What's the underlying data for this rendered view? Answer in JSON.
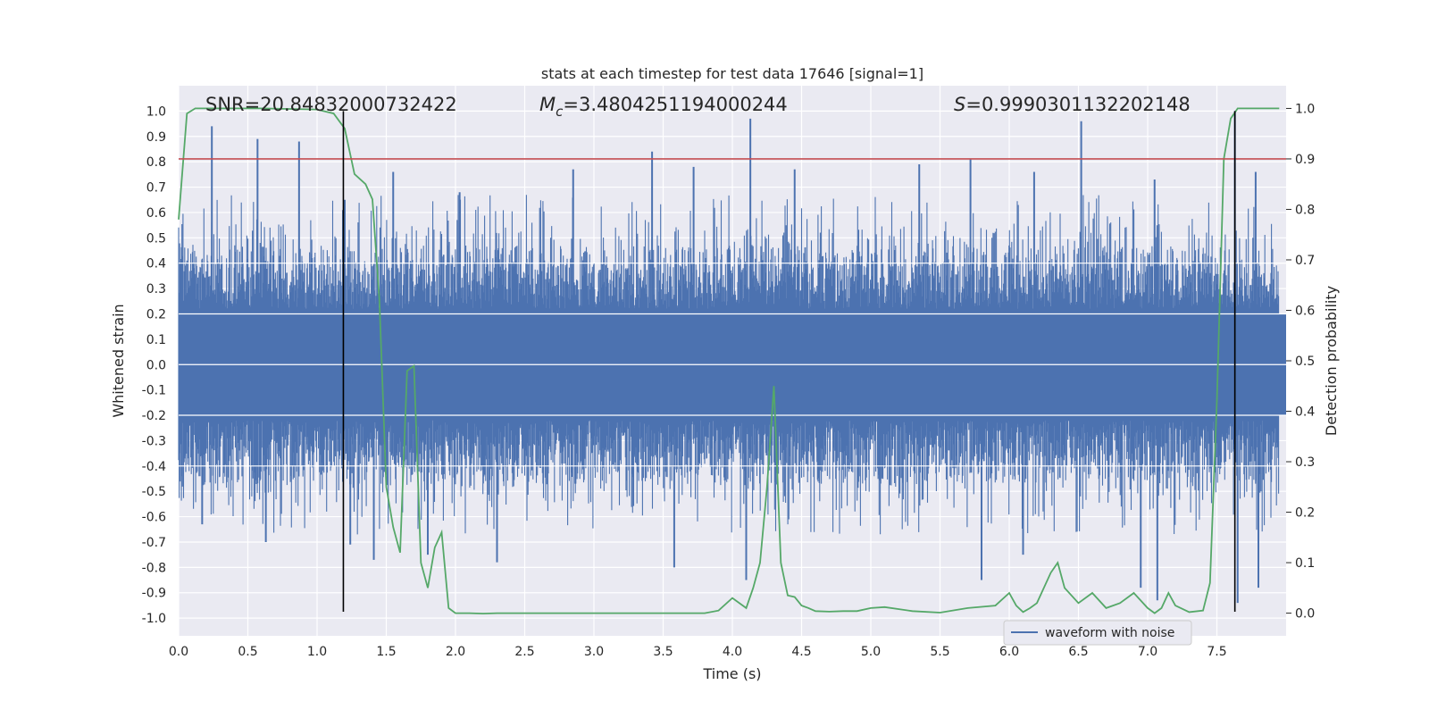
{
  "chart_data": {
    "type": "line",
    "title": "stats at each timestep for test data 17646 [signal=1]",
    "xlabel": "Time (s)",
    "ylabel": "Whitened strain",
    "y2label": "Detection probability",
    "xlim": [
      0.0,
      8.0
    ],
    "ylim": [
      -1.07,
      1.1
    ],
    "y2lim": [
      -0.045,
      1.045
    ],
    "x_ticks": [
      "0.0",
      "0.5",
      "1.0",
      "1.5",
      "2.0",
      "2.5",
      "3.0",
      "3.5",
      "4.0",
      "4.5",
      "5.0",
      "5.5",
      "6.0",
      "6.5",
      "7.0",
      "7.5"
    ],
    "y_ticks": [
      "1.0",
      "0.9",
      "0.8",
      "0.7",
      "0.6",
      "0.5",
      "0.4",
      "0.3",
      "0.2",
      "0.1",
      "0.0",
      "-0.1",
      "-0.2",
      "-0.3",
      "-0.4",
      "-0.5",
      "-0.6",
      "-0.7",
      "-0.8",
      "-0.9",
      "-1.0"
    ],
    "y2_ticks": [
      "1.0",
      "0.9",
      "0.8",
      "0.7",
      "0.6",
      "0.5",
      "0.4",
      "0.3",
      "0.2",
      "0.1",
      "0.0"
    ],
    "grid": true,
    "legend_position": "lower-right",
    "annotations": {
      "snr": "SNR=20.84832000732422",
      "mc_symbol": "M",
      "mc_sub": "c",
      "mc_value": "=3.4804251194000244",
      "s_symbol": "S",
      "s_value": "=0.9990301132202148"
    },
    "threshold": {
      "value": 0.9,
      "axis": "right",
      "color": "#c44e52"
    },
    "vertical_lines": [
      1.19,
      7.63
    ],
    "series": [
      {
        "name": "waveform with noise",
        "axis": "left",
        "color": "#4c72b0",
        "description_style": "dense noise",
        "peaks_positive": [
          [
            0.24,
            0.94
          ],
          [
            0.57,
            0.89
          ],
          [
            0.87,
            0.88
          ],
          [
            1.2,
            0.65
          ],
          [
            1.55,
            0.76
          ],
          [
            2.03,
            0.68
          ],
          [
            2.85,
            0.77
          ],
          [
            3.42,
            0.84
          ],
          [
            4.13,
            0.97
          ],
          [
            4.45,
            0.77
          ],
          [
            5.35,
            0.79
          ],
          [
            5.72,
            0.81
          ],
          [
            6.52,
            0.96
          ],
          [
            7.05,
            0.73
          ],
          [
            7.63,
            1.0
          ],
          [
            7.78,
            0.76
          ],
          [
            6.18,
            0.76
          ],
          [
            3.72,
            0.78
          ]
        ],
        "peaks_negative": [
          [
            0.17,
            -0.63
          ],
          [
            0.63,
            -0.7
          ],
          [
            1.24,
            -0.71
          ],
          [
            1.41,
            -0.77
          ],
          [
            1.8,
            -0.75
          ],
          [
            2.3,
            -0.78
          ],
          [
            3.58,
            -0.8
          ],
          [
            4.1,
            -0.85
          ],
          [
            5.8,
            -0.85
          ],
          [
            6.95,
            -0.88
          ],
          [
            7.07,
            -0.93
          ],
          [
            7.65,
            -0.94
          ],
          [
            7.8,
            -0.88
          ],
          [
            6.1,
            -0.75
          ]
        ]
      },
      {
        "name": "Detection probability",
        "axis": "right",
        "color": "#55a868",
        "x": [
          0.0,
          0.06,
          0.12,
          0.2,
          0.4,
          0.6,
          0.8,
          1.0,
          1.12,
          1.2,
          1.27,
          1.35,
          1.4,
          1.45,
          1.5,
          1.55,
          1.6,
          1.65,
          1.7,
          1.75,
          1.8,
          1.85,
          1.9,
          1.95,
          2.0,
          2.05,
          2.1,
          2.2,
          2.3,
          2.5,
          2.8,
          3.0,
          3.5,
          3.8,
          3.9,
          4.0,
          4.1,
          4.15,
          4.2,
          4.25,
          4.3,
          4.35,
          4.4,
          4.45,
          4.5,
          4.55,
          4.6,
          4.7,
          4.8,
          4.9,
          5.0,
          5.1,
          5.3,
          5.5,
          5.7,
          5.9,
          6.0,
          6.05,
          6.1,
          6.15,
          6.2,
          6.3,
          6.35,
          6.4,
          6.5,
          6.6,
          6.7,
          6.8,
          6.9,
          7.0,
          7.05,
          7.1,
          7.15,
          7.2,
          7.3,
          7.4,
          7.45,
          7.5,
          7.55,
          7.6,
          7.65,
          7.7,
          7.75,
          7.8,
          7.9,
          7.95
        ],
        "values": [
          0.78,
          0.99,
          1.0,
          1.0,
          1.0,
          1.0,
          0.999,
          0.998,
          0.99,
          0.96,
          0.87,
          0.85,
          0.82,
          0.62,
          0.25,
          0.17,
          0.12,
          0.48,
          0.49,
          0.1,
          0.05,
          0.13,
          0.16,
          0.01,
          0.0,
          0.0,
          0.0,
          -0.001,
          0.0,
          0.0,
          0.0,
          0.0,
          0.0,
          0.0,
          0.005,
          0.03,
          0.01,
          0.05,
          0.1,
          0.25,
          0.45,
          0.1,
          0.035,
          0.032,
          0.015,
          0.01,
          0.004,
          0.003,
          0.004,
          0.004,
          0.01,
          0.012,
          0.004,
          0.001,
          0.01,
          0.015,
          0.04,
          0.015,
          0.002,
          0.01,
          0.02,
          0.08,
          0.1,
          0.05,
          0.02,
          0.04,
          0.01,
          0.02,
          0.04,
          0.01,
          0.0,
          0.01,
          0.04,
          0.015,
          0.002,
          0.005,
          0.06,
          0.42,
          0.9,
          0.98,
          1.0,
          1.0,
          1.0,
          1.0,
          1.0,
          1.0
        ]
      }
    ]
  }
}
